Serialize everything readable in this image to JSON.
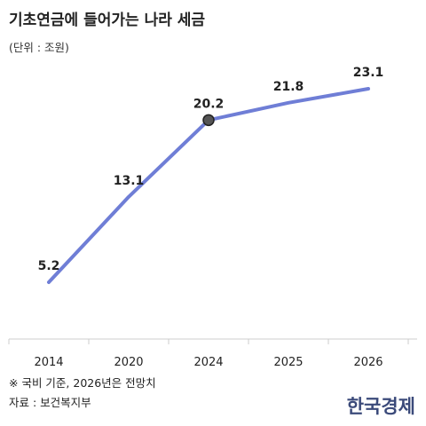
{
  "title": "기초연금에 들어가는 나라 세금",
  "unit": "(단위 : 조원)",
  "footnote": "※ 국비 기준, 2026년은 전망치",
  "source": "자료 : 보건복지부",
  "brand": "한국경제",
  "colors": {
    "line": "#6f7ed6",
    "marker_fill": "#555555",
    "marker_stroke": "#222222",
    "axis": "#cccccc"
  },
  "chart_data": {
    "type": "line",
    "categories": [
      "2014",
      "2020",
      "2024",
      "2025",
      "2026"
    ],
    "values": [
      5.2,
      13.1,
      20.2,
      21.8,
      23.1
    ],
    "data_labels": [
      "5.2",
      "13.1",
      "20.2",
      "21.8",
      "23.1"
    ],
    "highlighted_category": "2024",
    "ylim": [
      0,
      25
    ],
    "grid": false,
    "legend": "none"
  }
}
